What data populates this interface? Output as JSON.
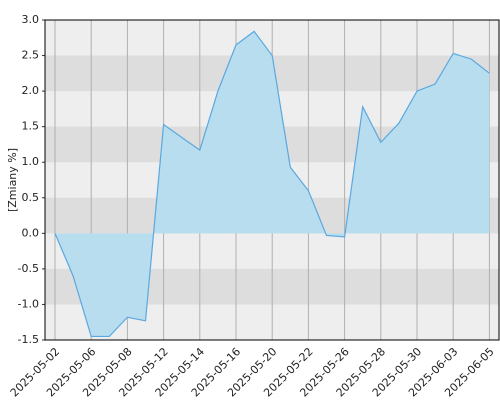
{
  "chart_data": {
    "type": "area",
    "y_label": "[Zmiany %]",
    "categories": [
      "2025-05-02",
      null,
      "2025-05-06",
      null,
      "2025-05-08",
      null,
      "2025-05-12",
      null,
      "2025-05-14",
      null,
      "2025-05-16",
      null,
      "2025-05-20",
      null,
      "2025-05-22",
      null,
      "2025-05-26",
      null,
      "2025-05-28",
      null,
      "2025-05-30",
      null,
      "2025-06-03",
      null,
      "2025-06-05"
    ],
    "values": [
      0.0,
      -0.6,
      -1.45,
      -1.45,
      -1.18,
      -1.23,
      1.53,
      1.35,
      1.17,
      2.0,
      2.65,
      2.84,
      2.5,
      0.93,
      0.6,
      -0.03,
      -0.05,
      1.78,
      1.28,
      1.55,
      2.0,
      2.1,
      2.53,
      2.45,
      2.25
    ],
    "color": "#5aa8e0",
    "fill": "#b8ddef",
    "ylim": [
      -1.5,
      3.0
    ],
    "yticks": [
      {
        "value": 3,
        "label": "3.0"
      },
      2.5,
      {
        "value": 2,
        "label": "2.0"
      },
      1.5,
      {
        "value": 1,
        "label": "1.0"
      },
      0.5,
      {
        "value": 0,
        "label": "0.0"
      },
      -0.5,
      {
        "value": -1,
        "label": "-1.0"
      },
      -1.5
    ],
    "grid": true
  }
}
